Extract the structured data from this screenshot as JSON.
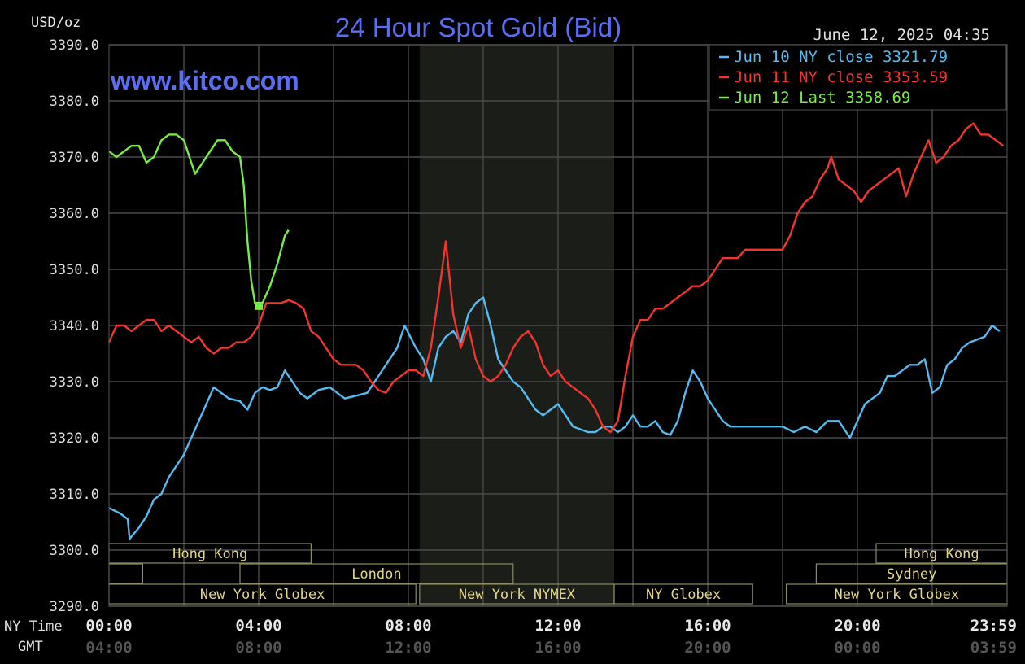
{
  "chart_data": {
    "type": "line",
    "title": "24 Hour Spot Gold (Bid)",
    "ylabel": "USD/oz",
    "watermark": "www.kitco.com",
    "timestamp": "June 12, 2025 04:35",
    "ylim": [
      3290,
      3390
    ],
    "y_ticks": [
      "3390.0",
      "3380.0",
      "3370.0",
      "3360.0",
      "3350.0",
      "3340.0",
      "3330.0",
      "3320.0",
      "3310.0",
      "3300.0",
      "3290.0"
    ],
    "y_tick_values": [
      3390,
      3380,
      3370,
      3360,
      3350,
      3340,
      3330,
      3320,
      3310,
      3300,
      3290
    ],
    "xlim": [
      0,
      24
    ],
    "ny_time_label": "NY Time",
    "gmt_label": "GMT",
    "x_ticks_ny": [
      "00:00",
      "04:00",
      "08:00",
      "12:00",
      "16:00",
      "20:00",
      "23:59"
    ],
    "x_ticks_gmt": [
      "04:00",
      "08:00",
      "12:00",
      "16:00",
      "20:00",
      "00:00",
      "03:59"
    ],
    "x_tick_hours": [
      0,
      4,
      8,
      12,
      16,
      20,
      24
    ],
    "grid": true,
    "legend_position": "top-right",
    "highlight_range": [
      8.3,
      13.5
    ],
    "series": [
      {
        "name": "Jun 10 NY close 3321.79",
        "color": "#55bbf0",
        "points": [
          [
            0,
            3307.5
          ],
          [
            0.3,
            3306.5
          ],
          [
            0.5,
            3305.5
          ],
          [
            0.55,
            3302
          ],
          [
            0.8,
            3304
          ],
          [
            1.0,
            3306
          ],
          [
            1.2,
            3309
          ],
          [
            1.4,
            3310
          ],
          [
            1.6,
            3313
          ],
          [
            1.8,
            3315
          ],
          [
            2.0,
            3317
          ],
          [
            2.2,
            3320
          ],
          [
            2.4,
            3323
          ],
          [
            2.6,
            3326
          ],
          [
            2.8,
            3329
          ],
          [
            3.0,
            3328
          ],
          [
            3.2,
            3327
          ],
          [
            3.5,
            3326.5
          ],
          [
            3.7,
            3325
          ],
          [
            3.9,
            3328
          ],
          [
            4.1,
            3329
          ],
          [
            4.3,
            3328.5
          ],
          [
            4.5,
            3329
          ],
          [
            4.7,
            3332
          ],
          [
            4.9,
            3330
          ],
          [
            5.1,
            3328
          ],
          [
            5.3,
            3327
          ],
          [
            5.6,
            3328.5
          ],
          [
            5.9,
            3329
          ],
          [
            6.1,
            3328
          ],
          [
            6.3,
            3327
          ],
          [
            6.6,
            3327.5
          ],
          [
            6.9,
            3328
          ],
          [
            7.1,
            3330
          ],
          [
            7.4,
            3333
          ],
          [
            7.7,
            3336
          ],
          [
            7.9,
            3340
          ],
          [
            8.2,
            3336
          ],
          [
            8.4,
            3334
          ],
          [
            8.6,
            3330
          ],
          [
            8.8,
            3336
          ],
          [
            9.0,
            3338
          ],
          [
            9.2,
            3339
          ],
          [
            9.4,
            3337
          ],
          [
            9.6,
            3342
          ],
          [
            9.8,
            3344
          ],
          [
            10.0,
            3345
          ],
          [
            10.2,
            3340
          ],
          [
            10.4,
            3334
          ],
          [
            10.6,
            3332
          ],
          [
            10.8,
            3330
          ],
          [
            11.0,
            3329
          ],
          [
            11.2,
            3327
          ],
          [
            11.4,
            3325
          ],
          [
            11.6,
            3324
          ],
          [
            11.8,
            3325
          ],
          [
            12.0,
            3326
          ],
          [
            12.2,
            3324
          ],
          [
            12.4,
            3322
          ],
          [
            12.6,
            3321.5
          ],
          [
            12.8,
            3321
          ],
          [
            13.0,
            3321
          ],
          [
            13.2,
            3322
          ],
          [
            13.4,
            3322
          ],
          [
            13.6,
            3321
          ],
          [
            13.8,
            3322
          ],
          [
            14.0,
            3324
          ],
          [
            14.2,
            3322
          ],
          [
            14.4,
            3322
          ],
          [
            14.6,
            3323
          ],
          [
            14.8,
            3321
          ],
          [
            15.0,
            3320.5
          ],
          [
            15.2,
            3323
          ],
          [
            15.4,
            3328
          ],
          [
            15.6,
            3332
          ],
          [
            15.8,
            3330
          ],
          [
            16.0,
            3327
          ],
          [
            16.2,
            3325
          ],
          [
            16.4,
            3323
          ],
          [
            16.6,
            3322
          ],
          [
            16.8,
            3322
          ],
          [
            17.0,
            3322
          ],
          [
            17.5,
            3322
          ],
          [
            18.0,
            3322
          ],
          [
            18.3,
            3321
          ],
          [
            18.6,
            3322
          ],
          [
            18.9,
            3321
          ],
          [
            19.2,
            3323
          ],
          [
            19.5,
            3323
          ],
          [
            19.7,
            3321
          ],
          [
            19.8,
            3320
          ],
          [
            20.0,
            3323
          ],
          [
            20.2,
            3326
          ],
          [
            20.4,
            3327
          ],
          [
            20.6,
            3328
          ],
          [
            20.8,
            3331
          ],
          [
            21.0,
            3331
          ],
          [
            21.2,
            3332
          ],
          [
            21.4,
            3333
          ],
          [
            21.6,
            3333
          ],
          [
            21.8,
            3334
          ],
          [
            22.0,
            3328
          ],
          [
            22.2,
            3329
          ],
          [
            22.4,
            3333
          ],
          [
            22.6,
            3334
          ],
          [
            22.8,
            3336
          ],
          [
            23.0,
            3337
          ],
          [
            23.2,
            3337.5
          ],
          [
            23.4,
            3338
          ],
          [
            23.6,
            3340
          ],
          [
            23.8,
            3339
          ]
        ]
      },
      {
        "name": "Jun 11 NY close 3353.59",
        "color": "#f2362d",
        "points": [
          [
            0,
            3337
          ],
          [
            0.2,
            3340
          ],
          [
            0.4,
            3340
          ],
          [
            0.6,
            3339
          ],
          [
            0.8,
            3340
          ],
          [
            1.0,
            3341
          ],
          [
            1.2,
            3341
          ],
          [
            1.4,
            3339
          ],
          [
            1.6,
            3340
          ],
          [
            1.8,
            3339
          ],
          [
            2.0,
            3338
          ],
          [
            2.2,
            3337
          ],
          [
            2.4,
            3338
          ],
          [
            2.6,
            3336
          ],
          [
            2.8,
            3335
          ],
          [
            3.0,
            3336
          ],
          [
            3.2,
            3336
          ],
          [
            3.4,
            3337
          ],
          [
            3.6,
            3337
          ],
          [
            3.8,
            3338
          ],
          [
            4.0,
            3340
          ],
          [
            4.2,
            3344
          ],
          [
            4.4,
            3344
          ],
          [
            4.6,
            3344
          ],
          [
            4.8,
            3344.5
          ],
          [
            5.0,
            3344
          ],
          [
            5.2,
            3343
          ],
          [
            5.4,
            3339
          ],
          [
            5.6,
            3338
          ],
          [
            5.8,
            3336
          ],
          [
            6.0,
            3334
          ],
          [
            6.2,
            3333
          ],
          [
            6.4,
            3333
          ],
          [
            6.6,
            3333
          ],
          [
            6.8,
            3332
          ],
          [
            7.0,
            3330
          ],
          [
            7.2,
            3328.5
          ],
          [
            7.4,
            3328
          ],
          [
            7.6,
            3330
          ],
          [
            7.8,
            3331
          ],
          [
            8.0,
            3332
          ],
          [
            8.2,
            3332
          ],
          [
            8.4,
            3331
          ],
          [
            8.6,
            3336
          ],
          [
            8.8,
            3345
          ],
          [
            9.0,
            3355
          ],
          [
            9.2,
            3342
          ],
          [
            9.4,
            3336
          ],
          [
            9.6,
            3340
          ],
          [
            9.8,
            3334
          ],
          [
            10.0,
            3331
          ],
          [
            10.2,
            3330
          ],
          [
            10.4,
            3331
          ],
          [
            10.6,
            3333
          ],
          [
            10.8,
            3336
          ],
          [
            11.0,
            3338
          ],
          [
            11.2,
            3339
          ],
          [
            11.4,
            3337
          ],
          [
            11.6,
            3333
          ],
          [
            11.8,
            3331
          ],
          [
            12.0,
            3332
          ],
          [
            12.2,
            3330
          ],
          [
            12.4,
            3329
          ],
          [
            12.6,
            3328
          ],
          [
            12.8,
            3327
          ],
          [
            13.0,
            3325
          ],
          [
            13.2,
            3322
          ],
          [
            13.4,
            3321
          ],
          [
            13.6,
            3323
          ],
          [
            13.8,
            3331
          ],
          [
            14.0,
            3338
          ],
          [
            14.2,
            3341
          ],
          [
            14.4,
            3341
          ],
          [
            14.6,
            3343
          ],
          [
            14.8,
            3343
          ],
          [
            15.0,
            3344
          ],
          [
            15.2,
            3345
          ],
          [
            15.4,
            3346
          ],
          [
            15.6,
            3347
          ],
          [
            15.8,
            3347
          ],
          [
            16.0,
            3348
          ],
          [
            16.2,
            3350
          ],
          [
            16.4,
            3352
          ],
          [
            16.6,
            3352
          ],
          [
            16.8,
            3352
          ],
          [
            17.0,
            3353.5
          ],
          [
            17.5,
            3353.5
          ],
          [
            18.0,
            3353.5
          ],
          [
            18.2,
            3356
          ],
          [
            18.4,
            3360
          ],
          [
            18.6,
            3362
          ],
          [
            18.8,
            3363
          ],
          [
            19.0,
            3366
          ],
          [
            19.2,
            3368
          ],
          [
            19.3,
            3370
          ],
          [
            19.5,
            3366
          ],
          [
            19.7,
            3365
          ],
          [
            19.9,
            3364
          ],
          [
            20.1,
            3362
          ],
          [
            20.3,
            3364
          ],
          [
            20.5,
            3365
          ],
          [
            20.7,
            3366
          ],
          [
            20.9,
            3367
          ],
          [
            21.1,
            3368
          ],
          [
            21.3,
            3363
          ],
          [
            21.5,
            3367
          ],
          [
            21.7,
            3370
          ],
          [
            21.9,
            3373
          ],
          [
            22.1,
            3369
          ],
          [
            22.3,
            3370
          ],
          [
            22.5,
            3372
          ],
          [
            22.7,
            3373
          ],
          [
            22.9,
            3375
          ],
          [
            23.1,
            3376
          ],
          [
            23.3,
            3374
          ],
          [
            23.5,
            3374
          ],
          [
            23.7,
            3373
          ],
          [
            23.9,
            3372
          ]
        ]
      },
      {
        "name": "Jun 12 Last 3358.69",
        "color": "#77ee44",
        "points": [
          [
            0,
            3371
          ],
          [
            0.2,
            3370
          ],
          [
            0.4,
            3371
          ],
          [
            0.6,
            3372
          ],
          [
            0.8,
            3372
          ],
          [
            1.0,
            3369
          ],
          [
            1.2,
            3370
          ],
          [
            1.4,
            3373
          ],
          [
            1.6,
            3374
          ],
          [
            1.8,
            3374
          ],
          [
            2.0,
            3373
          ],
          [
            2.1,
            3371
          ],
          [
            2.3,
            3367
          ],
          [
            2.5,
            3369
          ],
          [
            2.7,
            3371
          ],
          [
            2.9,
            3373
          ],
          [
            3.1,
            3373
          ],
          [
            3.3,
            3371
          ],
          [
            3.5,
            3370
          ],
          [
            3.6,
            3365
          ],
          [
            3.7,
            3355
          ],
          [
            3.8,
            3348
          ],
          [
            3.9,
            3344
          ],
          [
            4.0,
            3343.5
          ],
          [
            4.1,
            3344
          ],
          [
            4.3,
            3347
          ],
          [
            4.5,
            3351
          ],
          [
            4.7,
            3356
          ],
          [
            4.8,
            3357
          ]
        ]
      }
    ],
    "sessions": [
      {
        "label": "Hong Kong",
        "start": 0,
        "end": 5.4,
        "row": 1
      },
      {
        "label": "",
        "start": 0,
        "end": 0.9,
        "row": 2
      },
      {
        "label": "London",
        "start": 3.5,
        "end": 10.8,
        "row": 2
      },
      {
        "label": "New York Globex",
        "start": 0,
        "end": 8.2,
        "row": 3
      },
      {
        "label": "New York NYMEX",
        "start": 8.3,
        "end": 13.5,
        "row": 3
      },
      {
        "label": "NY Globex",
        "start": 13.5,
        "end": 17.2,
        "row": 3
      },
      {
        "label": "Hong Kong",
        "start": 20.5,
        "end": 24,
        "row": 1
      },
      {
        "label": "Sydney",
        "start": 18.9,
        "end": 24,
        "row": 2
      },
      {
        "label": "New York Globex",
        "start": 18.1,
        "end": 24,
        "row": 3
      }
    ]
  }
}
